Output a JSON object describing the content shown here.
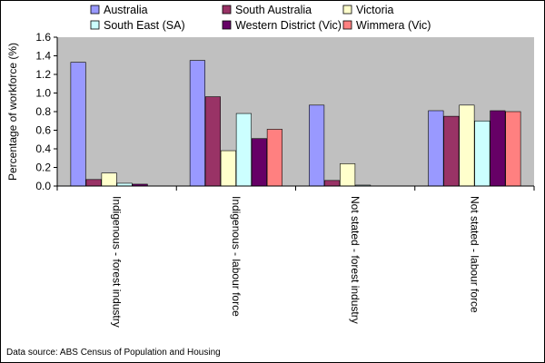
{
  "chart_data": {
    "type": "bar",
    "categories": [
      "Indigenous - forest industry",
      "Indigenous - labour force",
      "Not stated - forest industry",
      "Not stated - labour force"
    ],
    "series": [
      {
        "name": "Australia",
        "color": "#9999ff",
        "values": [
          1.33,
          1.35,
          0.87,
          0.81
        ]
      },
      {
        "name": "South Australia",
        "color": "#993366",
        "values": [
          0.07,
          0.96,
          0.06,
          0.75
        ]
      },
      {
        "name": "Victoria",
        "color": "#ffffcc",
        "values": [
          0.14,
          0.38,
          0.24,
          0.87
        ]
      },
      {
        "name": "South East (SA)",
        "color": "#ccffff",
        "values": [
          0.03,
          0.78,
          0.01,
          0.7
        ]
      },
      {
        "name": "Western District (Vic)",
        "color": "#660066",
        "values": [
          0.02,
          0.51,
          0.0,
          0.81
        ]
      },
      {
        "name": "Wimmera (Vic)",
        "color": "#ff8080",
        "values": [
          0.0,
          0.61,
          0.0,
          0.8
        ]
      }
    ],
    "ylabel": "Percentage of workforce (%)",
    "xlabel": "",
    "ylim": [
      0,
      1.6
    ],
    "yticks": [
      "0.0",
      "0.2",
      "0.4",
      "0.6",
      "0.8",
      "1.0",
      "1.2",
      "1.4",
      "1.6"
    ],
    "grid": false,
    "legend_position": "top"
  },
  "source_note": "Data source: ABS Census of Population and Housing"
}
